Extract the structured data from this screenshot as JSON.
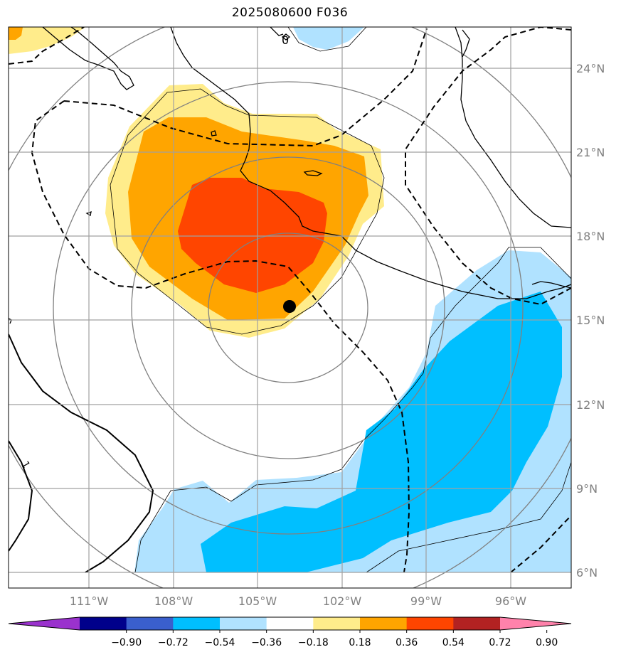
{
  "title": "2025080600 F036",
  "map": {
    "lon_ticks": [
      "111°W",
      "108°W",
      "105°W",
      "102°W",
      "99°W",
      "96°W"
    ],
    "lat_ticks": [
      "24°N",
      "21°N",
      "18°N",
      "15°N",
      "12°N",
      "9°N",
      "6°N"
    ],
    "contour_labels": [
      "0",
      "1"
    ],
    "storm_center": {
      "lat": 15.4,
      "lon": 103.9,
      "marker": "filled-circle"
    }
  },
  "colorbar": {
    "labels": [
      "−0.90",
      "−0.72",
      "−0.54",
      "−0.36",
      "−0.18",
      "0.18",
      "0.36",
      "0.54",
      "0.72",
      "0.90"
    ],
    "colors": [
      "#9a32cd",
      "#00008b",
      "#3a5fcd",
      "#00bfff",
      "#b0e2ff",
      "#ffffff",
      "#ffec8b",
      "#ffa500",
      "#ff4500",
      "#b22222",
      "#ff82ab"
    ]
  }
}
